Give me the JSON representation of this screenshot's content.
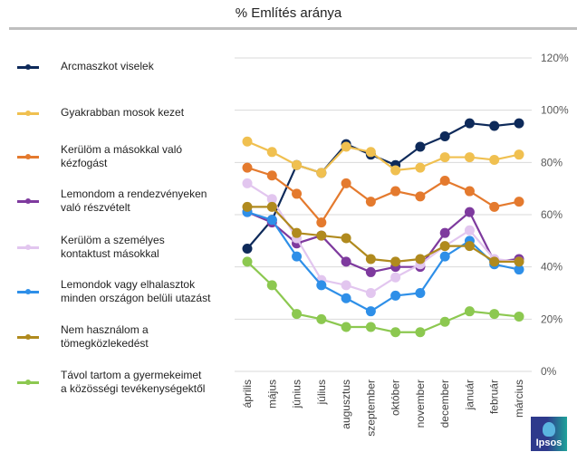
{
  "chart_data": {
    "type": "line",
    "title": "% Említés aránya",
    "xlabel": "",
    "ylabel": "",
    "categories": [
      "április",
      "május",
      "június",
      "július",
      "augusztus",
      "szeptember",
      "október",
      "november",
      "december",
      "január",
      "február",
      "március"
    ],
    "ylim": [
      0,
      120
    ],
    "yticks": [
      0,
      20,
      40,
      60,
      80,
      100,
      120
    ],
    "ytick_labels": [
      "0%",
      "20%",
      "40%",
      "60%",
      "80%",
      "100%",
      "120%"
    ],
    "grid": true,
    "legend_position": "left",
    "series": [
      {
        "name": "Arcmaszkot viselek",
        "color": "#0e2a5a",
        "values": [
          47,
          58,
          79,
          76,
          87,
          83,
          79,
          86,
          90,
          95,
          94,
          95
        ]
      },
      {
        "name": "Gyakrabban mosok kezet",
        "color": "#f0c050",
        "values": [
          88,
          84,
          79,
          76,
          86,
          84,
          77,
          78,
          82,
          82,
          81,
          83
        ]
      },
      {
        "name": "Kerülöm a másokkal való\nkézfogást",
        "color": "#e47a2e",
        "values": [
          78,
          75,
          68,
          57,
          72,
          65,
          69,
          67,
          73,
          69,
          63,
          65
        ]
      },
      {
        "name": "Lemondom a rendezvényeken\nvaló részvételt",
        "color": "#7e3a9e",
        "values": [
          61,
          57,
          49,
          52,
          42,
          38,
          40,
          40,
          53,
          61,
          42,
          43
        ]
      },
      {
        "name": "Kerülöm a személyes\nkontaktust másokkal",
        "color": "#e2c6ef",
        "values": [
          72,
          66,
          51,
          35,
          33,
          30,
          36,
          41,
          48,
          54,
          43,
          42
        ]
      },
      {
        "name": "Lemondok vagy elhalasztok\nminden országon belüli utazást",
        "color": "#2e8fe8",
        "values": [
          61,
          58,
          44,
          33,
          28,
          23,
          29,
          30,
          44,
          50,
          41,
          39
        ]
      },
      {
        "name": "Nem használom a\ntömegközlekedést",
        "color": "#b08a1e",
        "values": [
          63,
          63,
          53,
          52,
          51,
          43,
          42,
          43,
          48,
          48,
          42,
          42
        ]
      },
      {
        "name": "Távol tartom a gyermekeimet\na közösségi tevékenységektől",
        "color": "#8cc850",
        "values": [
          42,
          33,
          22,
          20,
          17,
          17,
          15,
          15,
          19,
          23,
          22,
          21
        ]
      }
    ]
  },
  "logo": {
    "text": "Ipsos"
  }
}
